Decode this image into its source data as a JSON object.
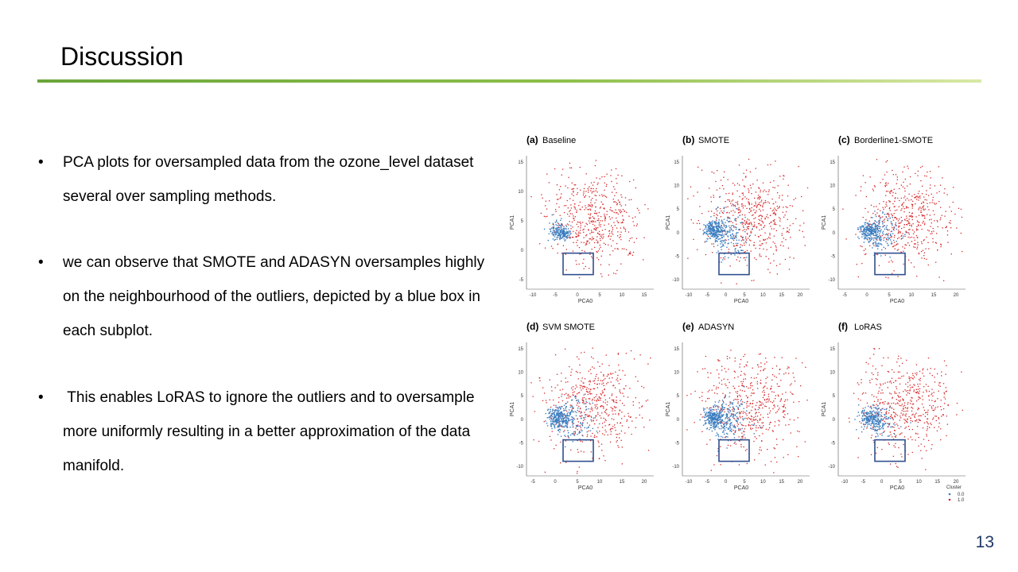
{
  "slide": {
    "title": "Discussion",
    "page_number": "13",
    "bullets": [
      "PCA plots for oversampled data from the ozone_level dataset several over sampling methods.",
      "we can observe that SMOTE and ADASYN oversamples highly on the neighbourhood of the outliers, depicted by a blue box in each subplot.",
      " This enables LoRAS to ignore the outliers and to oversample more uniformly resulting in a better approximation of the data manifold."
    ]
  },
  "colors": {
    "accent_rule": "#6aa63a",
    "red_points": "#d62728",
    "blue_points": "#3b7dbf",
    "box": "#2f4f8f",
    "page_number": "#1f3864"
  },
  "figure": {
    "legend": {
      "title": "Cluster",
      "labels": [
        "0.0",
        "1.0"
      ]
    },
    "subplots": [
      {
        "label": "(a)",
        "name": "Baseline",
        "xlabel": "PCA0",
        "ylabel": "PCA1",
        "xticks": [
          "-10",
          "-5",
          "0",
          "5",
          "10",
          "15"
        ],
        "yticks": [
          "15",
          "10",
          "5",
          "0",
          "-5"
        ]
      },
      {
        "label": "(b)",
        "name": "SMOTE",
        "xlabel": "PCA0",
        "ylabel": "PCA1",
        "xticks": [
          "-10",
          "-5",
          "0",
          "5",
          "10",
          "15",
          "20"
        ],
        "yticks": [
          "15",
          "10",
          "5",
          "0",
          "-5",
          "-10"
        ]
      },
      {
        "label": "(c)",
        "name": "Borderline1-SMOTE",
        "xlabel": "PCA0",
        "ylabel": "PCA1",
        "xticks": [
          "-5",
          "0",
          "5",
          "10",
          "15",
          "20"
        ],
        "yticks": [
          "15",
          "10",
          "5",
          "0",
          "-5",
          "-10"
        ]
      },
      {
        "label": "(d)",
        "name": "SVM SMOTE",
        "xlabel": "PCA0",
        "ylabel": "PCA1",
        "xticks": [
          "-5",
          "0",
          "5",
          "10",
          "15",
          "20"
        ],
        "yticks": [
          "15",
          "10",
          "5",
          "0",
          "-5",
          "-10"
        ]
      },
      {
        "label": "(e)",
        "name": "ADASYN",
        "xlabel": "PCA0",
        "ylabel": "PCA1",
        "xticks": [
          "-10",
          "-5",
          "0",
          "5",
          "10",
          "15",
          "20"
        ],
        "yticks": [
          "15",
          "10",
          "5",
          "0",
          "-5",
          "-10"
        ]
      },
      {
        "label": "(f)",
        "name": "LoRAS",
        "xlabel": "PCA0",
        "ylabel": "PCA1",
        "xticks": [
          "-10",
          "-5",
          "0",
          "5",
          "10",
          "15",
          "20"
        ],
        "yticks": [
          "15",
          "10",
          "5",
          "0",
          "-5",
          "-10"
        ]
      }
    ]
  }
}
